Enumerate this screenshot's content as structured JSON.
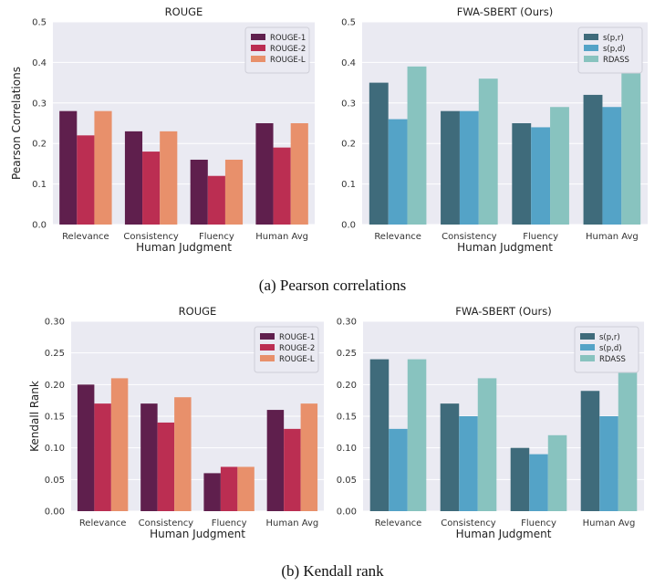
{
  "captions": [
    "(a) Pearson correlations",
    "(b) Kendall rank"
  ],
  "chart_data": [
    {
      "type": "bar",
      "title": "ROUGE",
      "xlabel": "Human Judgment",
      "ylabel": "Pearson Correlations",
      "ylim": [
        0,
        0.5
      ],
      "yticks": [
        "0.0",
        "0.1",
        "0.2",
        "0.3",
        "0.4",
        "0.5"
      ],
      "categories": [
        "Relevance",
        "Consistency",
        "Fluency",
        "Human Avg"
      ],
      "legend_position": "top-right",
      "grid": true,
      "series": [
        {
          "name": "ROUGE-1",
          "color": "#5f1f4d",
          "values": [
            0.28,
            0.23,
            0.16,
            0.25
          ]
        },
        {
          "name": "ROUGE-2",
          "color": "#bb2e52",
          "values": [
            0.22,
            0.18,
            0.12,
            0.19
          ]
        },
        {
          "name": "ROUGE-L",
          "color": "#e8906b",
          "values": [
            0.28,
            0.23,
            0.16,
            0.25
          ]
        }
      ]
    },
    {
      "type": "bar",
      "title": "FWA-SBERT (Ours)",
      "xlabel": "Human Judgment",
      "ylabel": "",
      "ylim": [
        0,
        0.5
      ],
      "yticks": [
        "0.0",
        "0.1",
        "0.2",
        "0.3",
        "0.4",
        "0.5"
      ],
      "categories": [
        "Relevance",
        "Consistency",
        "Fluency",
        "Human Avg"
      ],
      "legend_position": "top-right",
      "grid": true,
      "series": [
        {
          "name": "s(p,r)",
          "color": "#3f6b7b",
          "values": [
            0.35,
            0.28,
            0.25,
            0.32
          ]
        },
        {
          "name": "s(p,d)",
          "color": "#54a3c7",
          "values": [
            0.26,
            0.28,
            0.24,
            0.29
          ]
        },
        {
          "name": "RDASS",
          "color": "#88c3bf",
          "values": [
            0.39,
            0.36,
            0.29,
            0.38
          ]
        }
      ]
    },
    {
      "type": "bar",
      "title": "ROUGE",
      "xlabel": "Human Judgment",
      "ylabel": "Kendall Rank",
      "ylim": [
        0,
        0.3
      ],
      "yticks": [
        "0.00",
        "0.05",
        "0.10",
        "0.15",
        "0.20",
        "0.25",
        "0.30"
      ],
      "categories": [
        "Relevance",
        "Consistency",
        "Fluency",
        "Human Avg"
      ],
      "legend_position": "top-right",
      "grid": true,
      "series": [
        {
          "name": "ROUGE-1",
          "color": "#5f1f4d",
          "values": [
            0.2,
            0.17,
            0.06,
            0.16
          ]
        },
        {
          "name": "ROUGE-2",
          "color": "#bb2e52",
          "values": [
            0.17,
            0.14,
            0.07,
            0.13
          ]
        },
        {
          "name": "ROUGE-L",
          "color": "#e8906b",
          "values": [
            0.21,
            0.18,
            0.07,
            0.17
          ]
        }
      ]
    },
    {
      "type": "bar",
      "title": "FWA-SBERT (Ours)",
      "xlabel": "Human Judgment",
      "ylabel": "",
      "ylim": [
        0,
        0.3
      ],
      "yticks": [
        "0.00",
        "0.05",
        "0.10",
        "0.15",
        "0.20",
        "0.25",
        "0.30"
      ],
      "categories": [
        "Relevance",
        "Consistency",
        "Fluency",
        "Human Avg"
      ],
      "legend_position": "top-right",
      "grid": true,
      "series": [
        {
          "name": "s(p,r)",
          "color": "#3f6b7b",
          "values": [
            0.24,
            0.17,
            0.1,
            0.19
          ]
        },
        {
          "name": "s(p,d)",
          "color": "#54a3c7",
          "values": [
            0.13,
            0.15,
            0.09,
            0.15
          ]
        },
        {
          "name": "RDASS",
          "color": "#88c3bf",
          "values": [
            0.24,
            0.21,
            0.12,
            0.22
          ]
        }
      ]
    }
  ]
}
